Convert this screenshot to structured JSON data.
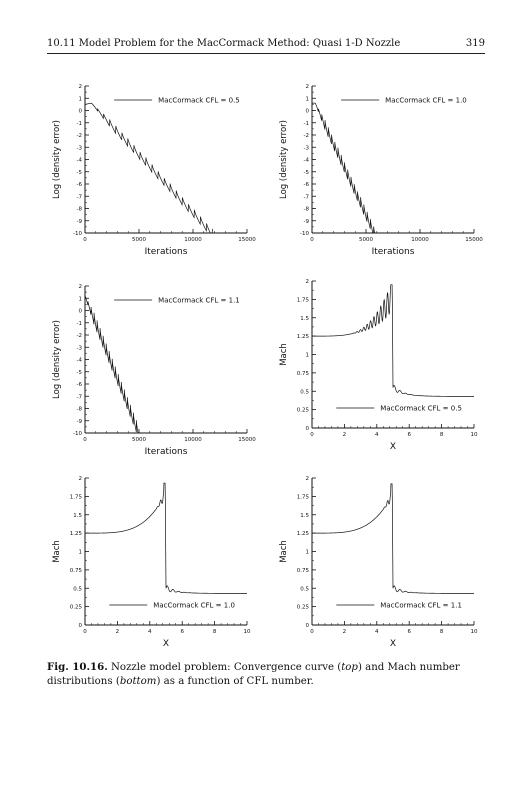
{
  "page": {
    "running_head": "10.11  Model Problem for the MacCormack Method: Quasi 1-D Nozzle",
    "page_number": "319"
  },
  "caption": {
    "label": "Fig. 10.16.",
    "text_1": " Nozzle model problem: Convergence curve (",
    "em_1": "top",
    "text_2": ") and Mach number distributions (",
    "em_2": "bottom",
    "text_3": ") as a function of CFL number."
  },
  "chart_data": [
    {
      "type": "line",
      "panel": "top-left",
      "title": "",
      "xlabel": "Iterations",
      "ylabel": "Log (density error)",
      "xlim": [
        0,
        15000
      ],
      "ylim": [
        -10,
        2
      ],
      "xticks": [
        0,
        5000,
        10000,
        15000
      ],
      "xtick_labels": [
        "0",
        "5000",
        "10000",
        "15000"
      ],
      "yticks": [
        2,
        1,
        0,
        -1,
        -2,
        -3,
        -4,
        -5,
        -6,
        -7,
        -8,
        -9,
        -10
      ],
      "ytick_labels": [
        "2",
        "1",
        "0",
        "-1",
        "-2",
        "-3",
        "-4",
        "-5",
        "-6",
        "-7",
        "-8",
        "-9",
        "-10"
      ],
      "grid": false,
      "legend_position": "top-right",
      "series": [
        {
          "name": "MacCormack CFL = 0.5",
          "shape": "convergence",
          "start": [
            0,
            0.5
          ],
          "plateau": [
            600,
            0.6
          ],
          "end": [
            11800,
            -10
          ],
          "ripple_amplitude": 0.35,
          "ripple_period": 560
        }
      ]
    },
    {
      "type": "line",
      "panel": "top-right",
      "title": "",
      "xlabel": "Iterations",
      "ylabel": "Log (density error)",
      "xlim": [
        0,
        15000
      ],
      "ylim": [
        -10,
        2
      ],
      "xticks": [
        0,
        5000,
        10000,
        15000
      ],
      "xtick_labels": [
        "0",
        "5000",
        "10000",
        "15000"
      ],
      "yticks": [
        2,
        1,
        0,
        -1,
        -2,
        -3,
        -4,
        -5,
        -6,
        -7,
        -8,
        -9,
        -10
      ],
      "ytick_labels": [
        "2",
        "1",
        "0",
        "-1",
        "-2",
        "-3",
        "-4",
        "-5",
        "-6",
        "-7",
        "-8",
        "-9",
        "-10"
      ],
      "grid": false,
      "legend_position": "top-right",
      "series": [
        {
          "name": "MacCormack CFL = 1.0",
          "shape": "convergence",
          "start": [
            0,
            0.6
          ],
          "plateau": [
            300,
            0.6
          ],
          "end": [
            5800,
            -10
          ],
          "ripple_amplitude": 0.45,
          "ripple_period": 300
        }
      ]
    },
    {
      "type": "line",
      "panel": "middle-left",
      "title": "",
      "xlabel": "Iterations",
      "ylabel": "Log (density error)",
      "xlim": [
        0,
        15000
      ],
      "ylim": [
        -10,
        2
      ],
      "xticks": [
        0,
        5000,
        10000,
        15000
      ],
      "xtick_labels": [
        "0",
        "5000",
        "10000",
        "15000"
      ],
      "yticks": [
        2,
        1,
        0,
        -1,
        -2,
        -3,
        -4,
        -5,
        -6,
        -7,
        -8,
        -9,
        -10
      ],
      "ytick_labels": [
        "2",
        "1",
        "0",
        "-1",
        "-2",
        "-3",
        "-4",
        "-5",
        "-6",
        "-7",
        "-8",
        "-9",
        "-10"
      ],
      "grid": false,
      "legend_position": "top-right",
      "series": [
        {
          "name": "MacCormack CFL = 1.1",
          "shape": "convergence",
          "start": [
            0,
            1.2
          ],
          "plateau": [
            0,
            1.2
          ],
          "end": [
            5000,
            -10
          ],
          "ripple_amplitude": 0.5,
          "ripple_period": 280
        }
      ]
    },
    {
      "type": "line",
      "panel": "middle-right",
      "title": "",
      "xlabel": "X",
      "ylabel": "Mach",
      "xlim": [
        0,
        10
      ],
      "ylim": [
        0,
        2
      ],
      "xticks": [
        0,
        2,
        4,
        6,
        8,
        10
      ],
      "xtick_labels": [
        "0",
        "2",
        "4",
        "6",
        "8",
        "10"
      ],
      "yticks": [
        2,
        1.75,
        1.5,
        1.25,
        1,
        0.75,
        0.5,
        0.25,
        0
      ],
      "ytick_labels": [
        "2",
        "1.75",
        "1.5",
        "1.25",
        "1",
        "0.75",
        "0.5",
        "0.25",
        "0"
      ],
      "grid": false,
      "legend_position": "bottom-right",
      "series": [
        {
          "name": "MacCormack CFL = 0.5",
          "shape": "mach",
          "inlet_mach": 1.25,
          "shock_x": 4.95,
          "peak_mach": 1.95,
          "post_shock_mach": 0.55,
          "outlet_mach": 0.43,
          "oscillation_amplitude": 0.2,
          "oscillation_start_x": 2.2
        }
      ]
    },
    {
      "type": "line",
      "panel": "bottom-left",
      "title": "",
      "xlabel": "X",
      "ylabel": "Mach",
      "xlim": [
        0,
        10
      ],
      "ylim": [
        0,
        2
      ],
      "xticks": [
        0,
        2,
        4,
        6,
        8,
        10
      ],
      "xtick_labels": [
        "0",
        "2",
        "4",
        "6",
        "8",
        "10"
      ],
      "yticks": [
        2,
        1.75,
        1.5,
        1.25,
        1,
        0.75,
        0.5,
        0.25,
        0
      ],
      "ytick_labels": [
        "2",
        "1.75",
        "1.5",
        "1.25",
        "1",
        "0.75",
        "0.5",
        "0.25",
        "0"
      ],
      "grid": false,
      "legend_position": "bottom-right",
      "series": [
        {
          "name": "MacCormack CFL = 1.0",
          "shape": "mach",
          "inlet_mach": 1.25,
          "shock_x": 4.95,
          "peak_mach": 1.93,
          "post_shock_mach": 0.5,
          "outlet_mach": 0.43,
          "oscillation_amplitude": 0.1,
          "oscillation_start_x": 4.3
        }
      ]
    },
    {
      "type": "line",
      "panel": "bottom-right",
      "title": "",
      "xlabel": "X",
      "ylabel": "Mach",
      "xlim": [
        0,
        10
      ],
      "ylim": [
        0,
        2
      ],
      "xticks": [
        0,
        2,
        4,
        6,
        8,
        10
      ],
      "xtick_labels": [
        "0",
        "2",
        "4",
        "6",
        "8",
        "10"
      ],
      "yticks": [
        2,
        1.75,
        1.5,
        1.25,
        1,
        0.75,
        0.5,
        0.25,
        0
      ],
      "ytick_labels": [
        "2",
        "1.75",
        "1.5",
        "1.25",
        "1",
        "0.75",
        "0.5",
        "0.25",
        "0"
      ],
      "grid": false,
      "legend_position": "bottom-right",
      "series": [
        {
          "name": "MacCormack CFL = 1.1",
          "shape": "mach",
          "inlet_mach": 1.25,
          "shock_x": 4.95,
          "peak_mach": 1.92,
          "post_shock_mach": 0.5,
          "outlet_mach": 0.43,
          "oscillation_amplitude": 0.1,
          "oscillation_start_x": 4.3
        }
      ]
    }
  ]
}
